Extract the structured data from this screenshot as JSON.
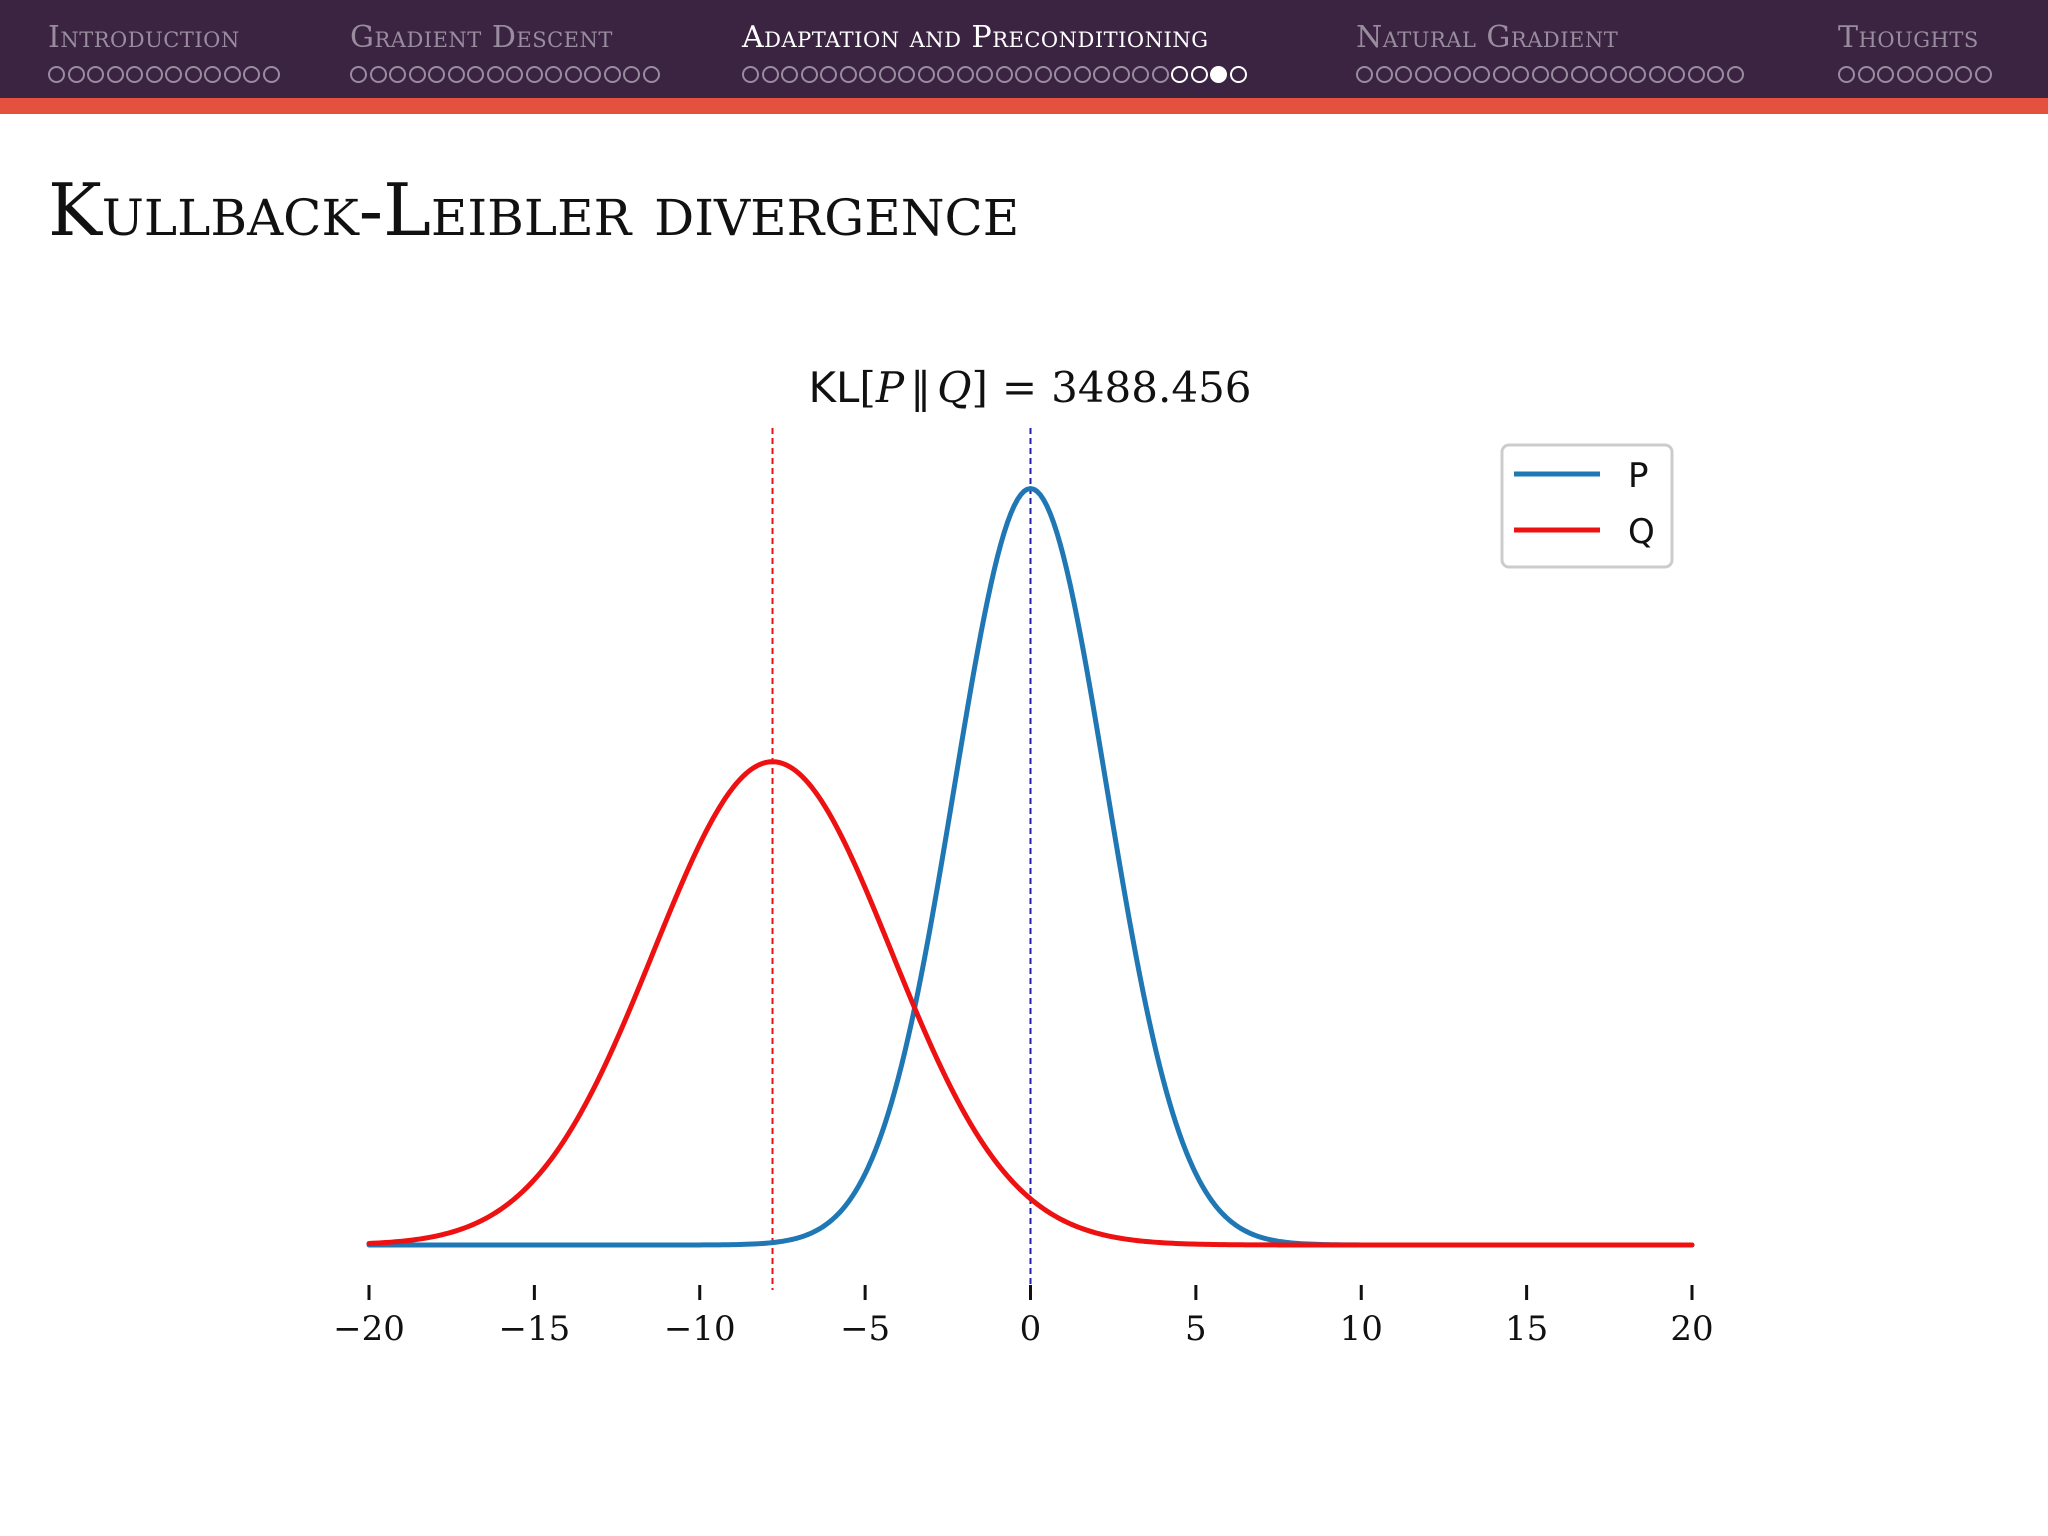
{
  "navigation": {
    "sections": [
      {
        "label": "Introduction",
        "dots": 12,
        "current": -1,
        "active": false
      },
      {
        "label": "Gradient Descent",
        "dots": 16,
        "current": -1,
        "active": false
      },
      {
        "label": "Adaptation and Preconditioning",
        "dots": 26,
        "current": 24,
        "active": true
      },
      {
        "label": "Natural Gradient",
        "dots": 20,
        "current": -1,
        "active": false
      },
      {
        "label": "Thoughts",
        "dots": 8,
        "current": -1,
        "active": false
      }
    ]
  },
  "slide": {
    "title": "Kullback-Leibler divergence"
  },
  "colors": {
    "navbar": "#3b2342",
    "accent": "#e5513f",
    "p": "#1f77b4",
    "q": "#ee1111"
  },
  "chart_data": {
    "type": "line",
    "title": {
      "func": "KL",
      "open": "[",
      "p": "P",
      "sep": "‖",
      "q": "Q",
      "close": "]",
      "equals": "=",
      "value": "3488.456"
    },
    "x_range": [
      -20,
      20
    ],
    "xticks": [
      -20,
      -15,
      -10,
      -5,
      0,
      5,
      10,
      15,
      20
    ],
    "xtick_labels": [
      "−20",
      "−15",
      "−10",
      "−5",
      "0",
      "5",
      "10",
      "15",
      "20"
    ],
    "ylim": [
      0,
      0.18
    ],
    "grid": false,
    "legend_position": "top-right",
    "series": [
      {
        "name": "P",
        "color": "#1f77b4",
        "mean": 0,
        "std": 2.3
      },
      {
        "name": "Q",
        "color": "#ee1111",
        "mean": -7.8,
        "std": 3.6
      }
    ],
    "mean_lines": [
      {
        "series": "P",
        "x": 0,
        "color": "#1f1fa8"
      },
      {
        "series": "Q",
        "x": -7.8,
        "color": "#ee1111"
      }
    ]
  }
}
